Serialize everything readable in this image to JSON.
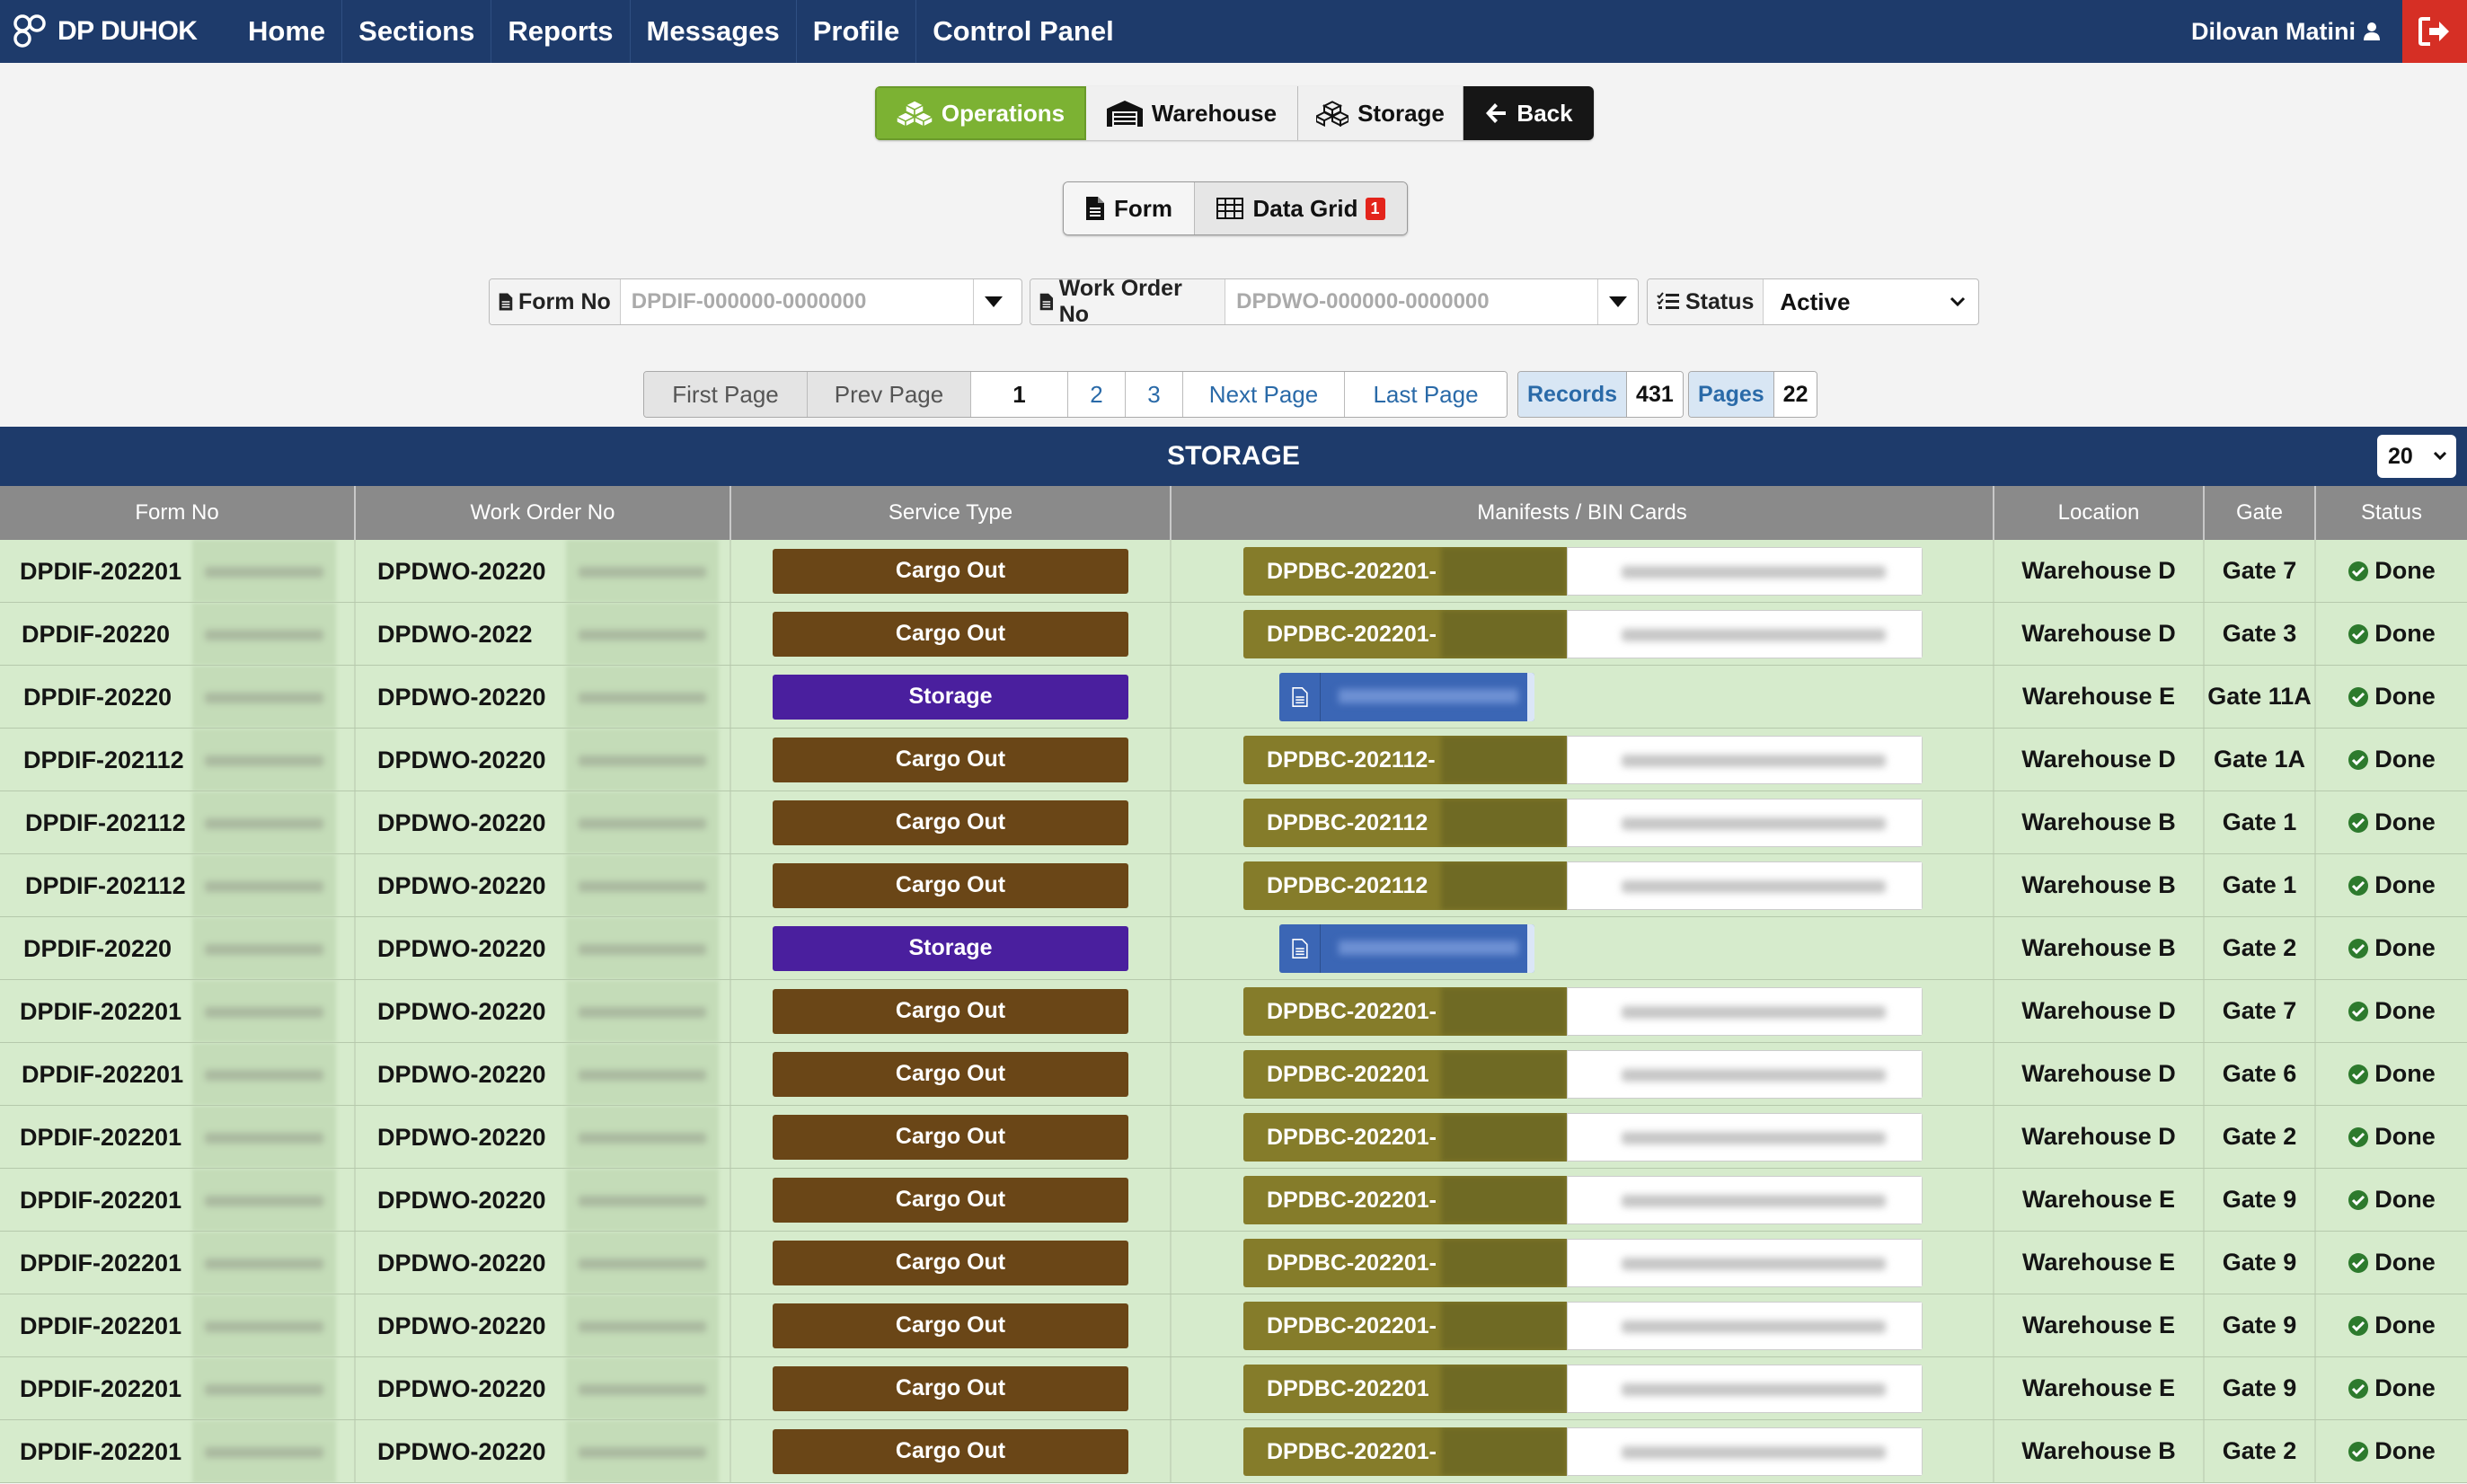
{
  "nav": {
    "brand": "DP DUHOK",
    "items": [
      "Home",
      "Sections",
      "Reports",
      "Messages",
      "Profile",
      "Control Panel"
    ],
    "user": "Dilovan Matini"
  },
  "toolbar": {
    "operations": "Operations",
    "warehouse": "Warehouse",
    "storage": "Storage",
    "back": "Back"
  },
  "view": {
    "form": "Form",
    "data_grid": "Data Grid",
    "data_grid_badge": "1"
  },
  "filters": {
    "form_no_label": "Form No",
    "form_no_placeholder": "DPDIF-000000-0000000",
    "work_order_label": "Work Order No",
    "work_order_placeholder": "DPDWO-000000-0000000",
    "status_label": "Status",
    "status_value": "Active"
  },
  "pagination": {
    "first": "First Page",
    "prev": "Prev Page",
    "pages": [
      "1",
      "2",
      "3"
    ],
    "next": "Next Page",
    "last": "Last Page",
    "records_label": "Records",
    "records_value": "431",
    "pages_label": "Pages",
    "pages_value": "22"
  },
  "table": {
    "title": "STORAGE",
    "per_page": "20",
    "headers": [
      "Form No",
      "Work Order No",
      "Service Type",
      "Manifests / BIN Cards",
      "Location",
      "Gate",
      "Status"
    ],
    "rows": [
      {
        "form": "DPDIF-202201",
        "wo": "DPDWO-20220",
        "service": "Cargo Out",
        "kind": "cargo",
        "manifest": "DPDBC-202201-",
        "location": "Warehouse D",
        "gate": "Gate 7",
        "status": "Done"
      },
      {
        "form": "DPDIF-20220",
        "wo": "DPDWO-2022",
        "service": "Cargo Out",
        "kind": "cargo",
        "manifest": "DPDBC-202201-",
        "location": "Warehouse D",
        "gate": "Gate 3",
        "status": "Done"
      },
      {
        "form": "DPDIF-20220",
        "wo": "DPDWO-20220",
        "service": "Storage",
        "kind": "storage",
        "manifest": "",
        "location": "Warehouse E",
        "gate": "Gate 11A",
        "status": "Done"
      },
      {
        "form": "DPDIF-202112",
        "wo": "DPDWO-20220",
        "service": "Cargo Out",
        "kind": "cargo",
        "manifest": "DPDBC-202112-",
        "location": "Warehouse D",
        "gate": "Gate 1A",
        "status": "Done"
      },
      {
        "form": "DPDIF-202112",
        "wo": "DPDWO-20220",
        "service": "Cargo Out",
        "kind": "cargo",
        "manifest": "DPDBC-202112",
        "location": "Warehouse B",
        "gate": "Gate 1",
        "status": "Done"
      },
      {
        "form": "DPDIF-202112",
        "wo": "DPDWO-20220",
        "service": "Cargo Out",
        "kind": "cargo",
        "manifest": "DPDBC-202112",
        "location": "Warehouse B",
        "gate": "Gate 1",
        "status": "Done"
      },
      {
        "form": "DPDIF-20220",
        "wo": "DPDWO-20220",
        "service": "Storage",
        "kind": "storage",
        "manifest": "",
        "location": "Warehouse B",
        "gate": "Gate 2",
        "status": "Done"
      },
      {
        "form": "DPDIF-202201",
        "wo": "DPDWO-20220",
        "service": "Cargo Out",
        "kind": "cargo",
        "manifest": "DPDBC-202201-",
        "location": "Warehouse D",
        "gate": "Gate 7",
        "status": "Done"
      },
      {
        "form": "DPDIF-202201",
        "wo": "DPDWO-20220",
        "service": "Cargo Out",
        "kind": "cargo",
        "manifest": "DPDBC-202201",
        "location": "Warehouse D",
        "gate": "Gate 6",
        "status": "Done"
      },
      {
        "form": "DPDIF-202201",
        "wo": "DPDWO-20220",
        "service": "Cargo Out",
        "kind": "cargo",
        "manifest": "DPDBC-202201-",
        "location": "Warehouse D",
        "gate": "Gate 2",
        "status": "Done"
      },
      {
        "form": "DPDIF-202201",
        "wo": "DPDWO-20220",
        "service": "Cargo Out",
        "kind": "cargo",
        "manifest": "DPDBC-202201-",
        "location": "Warehouse E",
        "gate": "Gate 9",
        "status": "Done"
      },
      {
        "form": "DPDIF-202201",
        "wo": "DPDWO-20220",
        "service": "Cargo Out",
        "kind": "cargo",
        "manifest": "DPDBC-202201-",
        "location": "Warehouse E",
        "gate": "Gate 9",
        "status": "Done"
      },
      {
        "form": "DPDIF-202201",
        "wo": "DPDWO-20220",
        "service": "Cargo Out",
        "kind": "cargo",
        "manifest": "DPDBC-202201-",
        "location": "Warehouse E",
        "gate": "Gate 9",
        "status": "Done"
      },
      {
        "form": "DPDIF-202201",
        "wo": "DPDWO-20220",
        "service": "Cargo Out",
        "kind": "cargo",
        "manifest": "DPDBC-202201",
        "location": "Warehouse E",
        "gate": "Gate 9",
        "status": "Done"
      },
      {
        "form": "DPDIF-202201",
        "wo": "DPDWO-20220",
        "service": "Cargo Out",
        "kind": "cargo",
        "manifest": "DPDBC-202201-",
        "location": "Warehouse B",
        "gate": "Gate 2",
        "status": "Done"
      }
    ]
  },
  "colors": {
    "navbar": "#1e3b6b",
    "operations_active": "#7cb233",
    "cargo_out": "#6a4617",
    "storage": "#4a1f9e",
    "manifest": "#857c2a",
    "row_bg": "#d6ebcc",
    "logout": "#d62f25"
  },
  "icons": {
    "operations": "boxes-icon",
    "warehouse": "warehouse-icon",
    "storage": "boxes-icon",
    "back": "arrow-left-icon",
    "form": "file-icon",
    "data_grid": "table-icon",
    "status": "list-check-icon",
    "done": "check-circle-icon",
    "logout": "sign-out-icon",
    "user": "user-icon"
  }
}
